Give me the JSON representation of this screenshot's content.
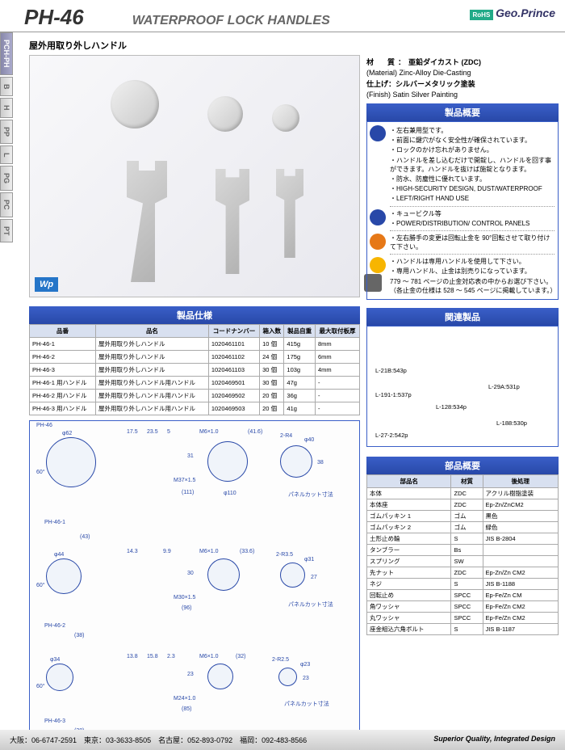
{
  "header": {
    "model": "PH-46",
    "title": "WATERPROOF LOCK HANDLES",
    "rohs": "RoHS",
    "brand": "Geo.Prince"
  },
  "sideTabs": [
    "PCH-PH",
    "B",
    "H",
    "PP",
    "L",
    "PG",
    "PC",
    "PT"
  ],
  "subtitle": "屋外用取り外しハンドル",
  "material": {
    "label": "材　質：",
    "jp": "亜鉛ダイカスト (ZDC)",
    "en": "(Material) Zinc-Alloy Die-Casting"
  },
  "finish": {
    "label": "仕上げ：",
    "jp": "シルバーメタリック塗装",
    "en": "(Finish) Satin Silver Painting"
  },
  "overview": {
    "header": "製品概要",
    "feature_bullets": [
      "・左右兼用型です。",
      "・前面に鍵穴がなく安全性が確保されています。",
      "・ロックのかけ忘れがありません。",
      "・ハンドルを差し込むだけで開錠し、ハンドルを回す事ができます。ハンドルを抜けば施錠となります。",
      "・防水、防塵性に優れています。",
      "・HIGH-SECURITY DESIGN, DUST/WATERPROOF",
      "・LEFT/RIGHT HAND USE"
    ],
    "use_bullets": [
      "・キュービクル等",
      "・POWER/DISTRIBUTION/ CONTROL PANELS"
    ],
    "op_bullets": [
      "・左右勝手の変更は回転止金を 90°回転させて取り付けて下さい。"
    ],
    "caution_bullets": [
      "・ハンドルは専用ハンドルを使用して下さい。",
      "・専用ハンドル、止金は別売りになっています。",
      "779 ～ 781 ページの止金対応表の中からお選び下さい。（各止金の仕様は 528 ～ 545 ページに掲載しています。）"
    ]
  },
  "specTable": {
    "header": "製品仕様",
    "columns": [
      "品番",
      "品名",
      "コードナンバー",
      "箱入数",
      "製品自重",
      "最大取付板厚"
    ],
    "rows": [
      [
        "PH-46-1",
        "屋外用取り外しハンドル",
        "1020461101",
        "10 個",
        "415g",
        "8mm"
      ],
      [
        "PH-46-2",
        "屋外用取り外しハンドル",
        "1020461102",
        "24 個",
        "175g",
        "6mm"
      ],
      [
        "PH-46-3",
        "屋外用取り外しハンドル",
        "1020461103",
        "30 個",
        "103g",
        "4mm"
      ],
      [
        "PH-46-1 用ハンドル",
        "屋外用取り外しハンドル用ハンドル",
        "1020469501",
        "30 個",
        "47g",
        "-"
      ],
      [
        "PH-46-2 用ハンドル",
        "屋外用取り外しハンドル用ハンドル",
        "1020469502",
        "20 個",
        "36g",
        "-"
      ],
      [
        "PH-46-3 用ハンドル",
        "屋外用取り外しハンドル用ハンドル",
        "1020469503",
        "20 個",
        "41g",
        "-"
      ]
    ]
  },
  "diagram": {
    "labels": {
      "ph46": "PH-46",
      "ph461": "PH-46-1",
      "ph462": "PH-46-2",
      "ph463": "PH-46-3",
      "d62": "φ62",
      "d44": "φ44",
      "d34": "φ34",
      "d40": "φ40",
      "d31": "φ31",
      "d23": "φ23",
      "a60a": "60°",
      "a60b": "60°",
      "a60c": "60°",
      "dim175": "17.5",
      "dim235": "23.5",
      "dim5": "5",
      "m6": "M6×1.0",
      "m6b": "M6×1.0",
      "m6c": "M6×1.0",
      "r4": "2-R4",
      "r35": "2-R3.5",
      "r25": "2-R2.5",
      "d110": "φ110",
      "d43": "(43)",
      "d38": "(38)",
      "d138": "13.8",
      "d28": "(28)",
      "m37": "M37×1.5",
      "m30": "M30×1.5",
      "m24": "M24×1.0",
      "n111": "(111)",
      "n96": "(96)",
      "n85": "(85)",
      "n31": "31",
      "n38": "38",
      "n30": "30",
      "n27": "27",
      "n23a": "23",
      "n23b": "23",
      "n416": "(41.6)",
      "n336": "(33.6)",
      "n32": "(32)",
      "n143": "14.3",
      "n99": "9.9",
      "n158": "15.8",
      "n23c": "2.3",
      "panel": "パネルカット寸法"
    }
  },
  "related": {
    "header": "関連製品",
    "items": [
      {
        "label": "L-21B:543p"
      },
      {
        "label": "L-191-1:537p"
      },
      {
        "label": "L-128:534p"
      },
      {
        "label": "L-29A:531p"
      },
      {
        "label": "L-27-2:542p"
      },
      {
        "label": "L-188:530p"
      }
    ]
  },
  "parts": {
    "header": "部品概要",
    "columns": [
      "部品名",
      "材質",
      "後処理"
    ],
    "rows": [
      [
        "本体",
        "ZDC",
        "アクリル樹脂塗装"
      ],
      [
        "本体座",
        "ZDC",
        "Ep-Zn/ZnCM2"
      ],
      [
        "ゴムパッキン 1",
        "ゴム",
        "黒色"
      ],
      [
        "ゴムパッキン 2",
        "ゴム",
        "緑色"
      ],
      [
        "土形止め輪",
        "S",
        "JIS B-2804"
      ],
      [
        "タンブラー",
        "Bs",
        ""
      ],
      [
        "スプリング",
        "SW",
        ""
      ],
      [
        "先ナット",
        "ZDC",
        "Ep-Zn/Zn CM2"
      ],
      [
        "ネジ",
        "S",
        "JIS B-1188"
      ],
      [
        "回転止め",
        "SPCC",
        "Ep-Fe/Zn CM"
      ],
      [
        "角ワッシャ",
        "SPCC",
        "Ep-Fe/Zn CM2"
      ],
      [
        "丸ワッシャ",
        "SPCC",
        "Ep-Fe/Zn CM2"
      ],
      [
        "座金組込六角ボルト",
        "S",
        "JIS B-1187"
      ]
    ]
  },
  "footer": {
    "contacts": "大阪：06-6747-2591　東京：03-3633-8505　名古屋：052-893-0792　福岡：092-483-8566",
    "tagline": "Superior Quality, Integrated Design",
    "page": "118"
  },
  "colors": {
    "header_blue": "#2848a8",
    "table_head": "#d8e0f0"
  }
}
